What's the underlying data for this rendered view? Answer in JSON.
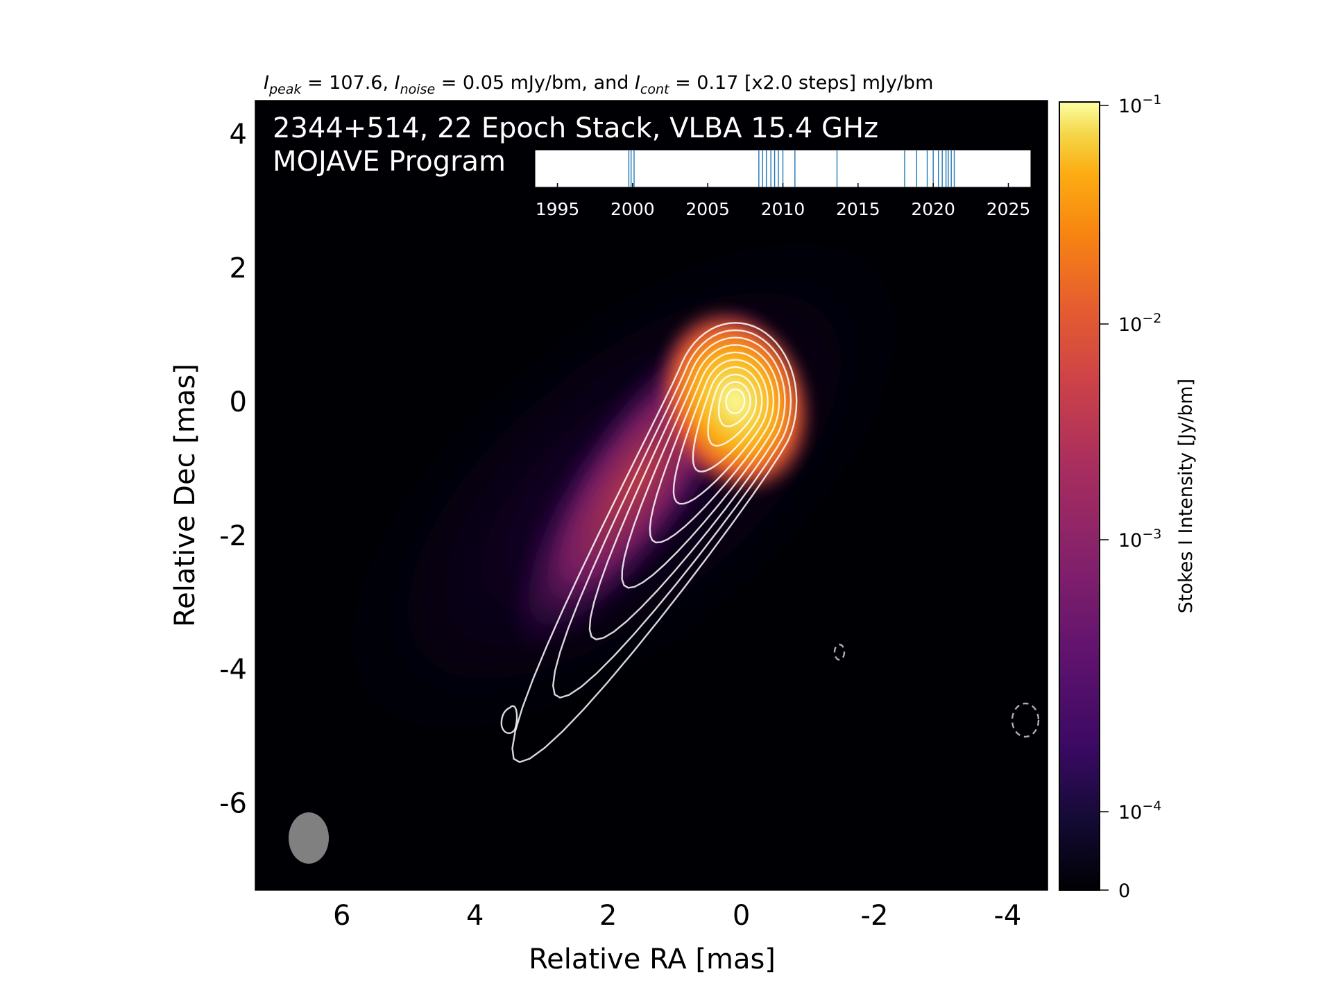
{
  "header": {
    "peak_sym": "I",
    "peak_sub": "peak",
    "peak_val": " = 107.6, ",
    "noise_sym": "I",
    "noise_sub": "noise",
    "noise_val": " = 0.05 mJy/bm, and ",
    "cont_sym": "I",
    "cont_sub": "cont",
    "cont_val": " = 0.17 [x2.0 steps] mJy/bm"
  },
  "overlay": {
    "line1": "2344+514, 22 Epoch Stack, VLBA 15.4 GHz",
    "line2": "MOJAVE Program"
  },
  "colors": {
    "background_map": "#000004",
    "contour_positive": "#ffffff",
    "contour_negative": "#cccccc",
    "beam": "#808080",
    "epoch_line": "#1f77b4",
    "colormap": "inferno"
  },
  "chart_data": {
    "type": "heatmap",
    "title": "2344+514, 22 Epoch Stack, VLBA 15.4 GHz",
    "xlabel": "Relative RA [mas]",
    "ylabel": "Relative Dec [mas]",
    "xlim": [
      7.3,
      -4.6
    ],
    "ylim": [
      -7.3,
      4.5
    ],
    "x_ticks": [
      6,
      4,
      2,
      0,
      -2,
      -4
    ],
    "x_tick_labels": [
      "6",
      "4",
      "2",
      "0",
      "-2",
      "-4"
    ],
    "y_ticks": [
      4,
      2,
      0,
      -2,
      -4,
      -6
    ],
    "y_tick_labels": [
      "4",
      "2",
      "0",
      "-2",
      "-4",
      "-6"
    ],
    "peak_position": [
      0,
      0
    ],
    "peak_intensity_mJy_per_beam": 107.6,
    "noise_mJy_per_beam": 0.05,
    "contour_base_mJy_per_beam": 0.17,
    "contour_step_factor": 2.0,
    "contour_count": 10,
    "beam": {
      "center": [
        6.4,
        -6.5
      ],
      "major_mas": 0.75,
      "minor_mas": 0.58,
      "pa_deg": 0
    },
    "colorbar": {
      "label": "Stokes I Intensity [Jy/bm]",
      "scale": "log",
      "tick_values": [
        0.1,
        0.01,
        0.001,
        0.0001,
        0
      ],
      "tick_labels": [
        {
          "base": "10",
          "exp": "−1"
        },
        {
          "base": "10",
          "exp": "−2"
        },
        {
          "base": "10",
          "exp": "−3"
        },
        {
          "base": "10",
          "exp": "−4"
        },
        {
          "base": "0",
          "exp": ""
        }
      ]
    },
    "epoch_timeline": {
      "xlim": [
        1993.5,
        2026.5
      ],
      "ticks": [
        1995,
        2000,
        2005,
        2010,
        2015,
        2020,
        2025
      ],
      "tick_labels": [
        "1995",
        "2000",
        "2005",
        "2010",
        "2015",
        "2020",
        "2025"
      ],
      "epochs": [
        1999.75,
        1999.9,
        2000.1,
        2008.4,
        2008.65,
        2008.9,
        2009.2,
        2009.45,
        2009.7,
        2010.0,
        2010.8,
        2013.6,
        2018.1,
        2018.9,
        2019.6,
        2020.0,
        2020.35,
        2020.6,
        2020.85,
        2021.0,
        2021.2,
        2021.4
      ]
    }
  }
}
